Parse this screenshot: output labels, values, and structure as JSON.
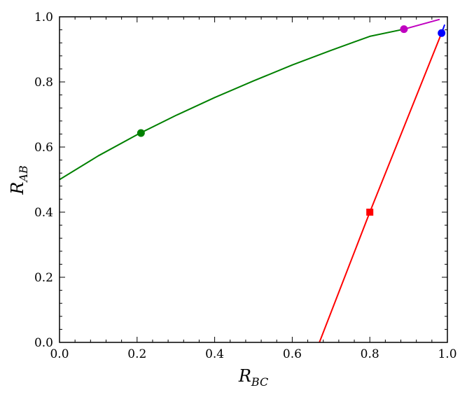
{
  "chart_data": {
    "type": "line",
    "title": "",
    "xlabel_main": "R",
    "xlabel_sub": "BC",
    "ylabel_main": "R",
    "ylabel_sub": "AB",
    "xlim": [
      0.0,
      1.0
    ],
    "ylim": [
      0.0,
      1.0
    ],
    "xticks": [
      "0.0",
      "0.2",
      "0.4",
      "0.6",
      "0.8",
      "1.0"
    ],
    "yticks": [
      "0.0",
      "0.2",
      "0.4",
      "0.6",
      "0.8",
      "1.0"
    ],
    "grid": false,
    "legend": "none",
    "series": [
      {
        "color": "#008000",
        "points": [
          [
            0.0,
            0.5
          ],
          [
            0.1,
            0.573
          ],
          [
            0.2,
            0.638
          ],
          [
            0.3,
            0.697
          ],
          [
            0.4,
            0.752
          ],
          [
            0.5,
            0.803
          ],
          [
            0.6,
            0.852
          ],
          [
            0.7,
            0.897
          ],
          [
            0.8,
            0.94
          ],
          [
            0.888,
            0.962
          ]
        ]
      },
      {
        "color": "#c000c0",
        "points": [
          [
            0.888,
            0.962
          ],
          [
            0.98,
            0.992
          ]
        ]
      },
      {
        "color": "#ff0000",
        "points": [
          [
            0.67,
            0.0
          ],
          [
            0.8,
            0.4
          ],
          [
            0.985,
            0.95
          ]
        ]
      },
      {
        "color": "#0000ff",
        "points": [
          [
            0.985,
            0.95
          ],
          [
            0.993,
            0.976
          ]
        ]
      }
    ],
    "markers": [
      {
        "shape": "circle",
        "color": "#008000",
        "x": 0.21,
        "y": 0.643
      },
      {
        "shape": "circle",
        "color": "#c000c0",
        "x": 0.888,
        "y": 0.962
      },
      {
        "shape": "circle",
        "color": "#0000ff",
        "x": 0.985,
        "y": 0.95
      },
      {
        "shape": "square",
        "color": "#ff0000",
        "x": 0.8,
        "y": 0.4
      }
    ]
  }
}
